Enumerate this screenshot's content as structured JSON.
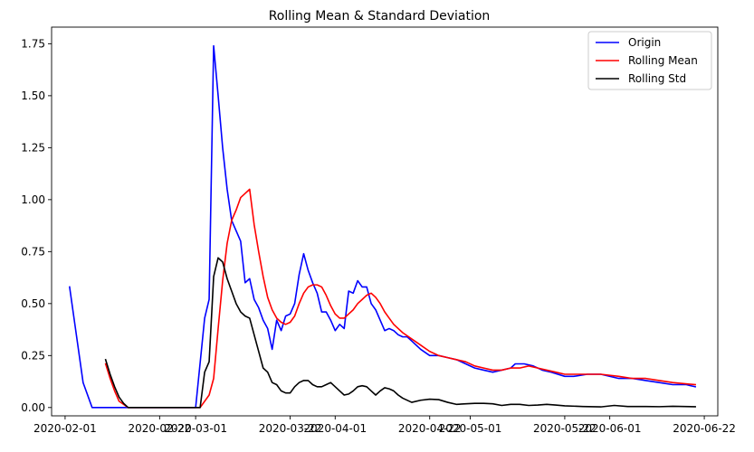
{
  "chart_data": {
    "type": "line",
    "title": "Rolling Mean & Standard Deviation",
    "xlabel": "",
    "ylabel": "",
    "x_axis": {
      "kind": "date",
      "range": [
        "2020-01-29",
        "2020-06-25"
      ],
      "ticks": [
        "2020-02-01",
        "2020-02-22",
        "2020-03-01",
        "2020-03-22",
        "2020-04-01",
        "2020-04-22",
        "2020-05-01",
        "2020-05-22",
        "2020-06-01",
        "2020-06-22"
      ]
    },
    "ylim": [
      -0.04,
      1.83
    ],
    "y_ticks": [
      "0.00",
      "0.25",
      "0.50",
      "0.75",
      "1.00",
      "1.25",
      "1.50",
      "1.75"
    ],
    "legend_position": "top-right",
    "grid": false,
    "series": [
      {
        "name": "Origin",
        "color": "#0000ff",
        "points": [
          [
            "2020-02-02",
            0.58
          ],
          [
            "2020-02-05",
            0.12
          ],
          [
            "2020-02-07",
            0.0
          ],
          [
            "2020-02-14",
            0.0
          ],
          [
            "2020-02-24",
            0.0
          ],
          [
            "2020-03-01",
            0.0
          ],
          [
            "2020-03-03",
            0.43
          ],
          [
            "2020-03-04",
            0.52
          ],
          [
            "2020-03-05",
            1.74
          ],
          [
            "2020-03-06",
            1.5
          ],
          [
            "2020-03-07",
            1.25
          ],
          [
            "2020-03-08",
            1.05
          ],
          [
            "2020-03-09",
            0.9
          ],
          [
            "2020-03-10",
            0.85
          ],
          [
            "2020-03-11",
            0.8
          ],
          [
            "2020-03-12",
            0.6
          ],
          [
            "2020-03-13",
            0.62
          ],
          [
            "2020-03-14",
            0.52
          ],
          [
            "2020-03-15",
            0.48
          ],
          [
            "2020-03-16",
            0.42
          ],
          [
            "2020-03-17",
            0.38
          ],
          [
            "2020-03-18",
            0.28
          ],
          [
            "2020-03-19",
            0.42
          ],
          [
            "2020-03-20",
            0.37
          ],
          [
            "2020-03-21",
            0.44
          ],
          [
            "2020-03-22",
            0.45
          ],
          [
            "2020-03-23",
            0.5
          ],
          [
            "2020-03-24",
            0.64
          ],
          [
            "2020-03-25",
            0.74
          ],
          [
            "2020-03-26",
            0.66
          ],
          [
            "2020-03-27",
            0.6
          ],
          [
            "2020-03-28",
            0.55
          ],
          [
            "2020-03-29",
            0.46
          ],
          [
            "2020-03-30",
            0.46
          ],
          [
            "2020-03-31",
            0.42
          ],
          [
            "2020-04-01",
            0.37
          ],
          [
            "2020-04-02",
            0.4
          ],
          [
            "2020-04-03",
            0.38
          ],
          [
            "2020-04-04",
            0.56
          ],
          [
            "2020-04-05",
            0.55
          ],
          [
            "2020-04-06",
            0.61
          ],
          [
            "2020-04-07",
            0.58
          ],
          [
            "2020-04-08",
            0.58
          ],
          [
            "2020-04-09",
            0.5
          ],
          [
            "2020-04-10",
            0.47
          ],
          [
            "2020-04-11",
            0.42
          ],
          [
            "2020-04-12",
            0.37
          ],
          [
            "2020-04-13",
            0.38
          ],
          [
            "2020-04-14",
            0.37
          ],
          [
            "2020-04-15",
            0.35
          ],
          [
            "2020-04-16",
            0.34
          ],
          [
            "2020-04-17",
            0.34
          ],
          [
            "2020-04-18",
            0.32
          ],
          [
            "2020-04-20",
            0.28
          ],
          [
            "2020-04-22",
            0.25
          ],
          [
            "2020-04-24",
            0.25
          ],
          [
            "2020-04-26",
            0.24
          ],
          [
            "2020-04-28",
            0.23
          ],
          [
            "2020-04-30",
            0.21
          ],
          [
            "2020-05-02",
            0.19
          ],
          [
            "2020-05-04",
            0.18
          ],
          [
            "2020-05-06",
            0.17
          ],
          [
            "2020-05-08",
            0.18
          ],
          [
            "2020-05-10",
            0.19
          ],
          [
            "2020-05-11",
            0.21
          ],
          [
            "2020-05-13",
            0.21
          ],
          [
            "2020-05-15",
            0.2
          ],
          [
            "2020-05-17",
            0.18
          ],
          [
            "2020-05-19",
            0.17
          ],
          [
            "2020-05-22",
            0.15
          ],
          [
            "2020-05-24",
            0.15
          ],
          [
            "2020-05-27",
            0.16
          ],
          [
            "2020-05-30",
            0.16
          ],
          [
            "2020-06-03",
            0.14
          ],
          [
            "2020-06-06",
            0.14
          ],
          [
            "2020-06-09",
            0.13
          ],
          [
            "2020-06-12",
            0.12
          ],
          [
            "2020-06-15",
            0.11
          ],
          [
            "2020-06-18",
            0.11
          ],
          [
            "2020-06-20",
            0.1
          ]
        ]
      },
      {
        "name": "Rolling Mean",
        "color": "#ff0000",
        "points": [
          [
            "2020-02-10",
            0.21
          ],
          [
            "2020-02-11",
            0.14
          ],
          [
            "2020-02-12",
            0.08
          ],
          [
            "2020-02-13",
            0.03
          ],
          [
            "2020-02-15",
            0.0
          ],
          [
            "2020-02-24",
            0.0
          ],
          [
            "2020-03-02",
            0.0
          ],
          [
            "2020-03-04",
            0.06
          ],
          [
            "2020-03-05",
            0.14
          ],
          [
            "2020-03-06",
            0.38
          ],
          [
            "2020-03-07",
            0.61
          ],
          [
            "2020-03-08",
            0.79
          ],
          [
            "2020-03-09",
            0.9
          ],
          [
            "2020-03-10",
            0.95
          ],
          [
            "2020-03-11",
            1.01
          ],
          [
            "2020-03-12",
            1.03
          ],
          [
            "2020-03-13",
            1.05
          ],
          [
            "2020-03-14",
            0.88
          ],
          [
            "2020-03-15",
            0.75
          ],
          [
            "2020-03-16",
            0.63
          ],
          [
            "2020-03-17",
            0.53
          ],
          [
            "2020-03-18",
            0.47
          ],
          [
            "2020-03-19",
            0.43
          ],
          [
            "2020-03-20",
            0.41
          ],
          [
            "2020-03-21",
            0.4
          ],
          [
            "2020-03-22",
            0.41
          ],
          [
            "2020-03-23",
            0.44
          ],
          [
            "2020-03-24",
            0.5
          ],
          [
            "2020-03-25",
            0.55
          ],
          [
            "2020-03-26",
            0.58
          ],
          [
            "2020-03-27",
            0.59
          ],
          [
            "2020-03-28",
            0.59
          ],
          [
            "2020-03-29",
            0.58
          ],
          [
            "2020-03-30",
            0.54
          ],
          [
            "2020-03-31",
            0.49
          ],
          [
            "2020-04-01",
            0.45
          ],
          [
            "2020-04-02",
            0.43
          ],
          [
            "2020-04-03",
            0.43
          ],
          [
            "2020-04-04",
            0.45
          ],
          [
            "2020-04-05",
            0.47
          ],
          [
            "2020-04-06",
            0.5
          ],
          [
            "2020-04-07",
            0.52
          ],
          [
            "2020-04-08",
            0.54
          ],
          [
            "2020-04-09",
            0.55
          ],
          [
            "2020-04-10",
            0.53
          ],
          [
            "2020-04-11",
            0.5
          ],
          [
            "2020-04-12",
            0.46
          ],
          [
            "2020-04-13",
            0.43
          ],
          [
            "2020-04-14",
            0.4
          ],
          [
            "2020-04-15",
            0.38
          ],
          [
            "2020-04-16",
            0.36
          ],
          [
            "2020-04-18",
            0.33
          ],
          [
            "2020-04-20",
            0.3
          ],
          [
            "2020-04-22",
            0.27
          ],
          [
            "2020-04-24",
            0.25
          ],
          [
            "2020-04-26",
            0.24
          ],
          [
            "2020-04-28",
            0.23
          ],
          [
            "2020-04-30",
            0.22
          ],
          [
            "2020-05-02",
            0.2
          ],
          [
            "2020-05-04",
            0.19
          ],
          [
            "2020-05-06",
            0.18
          ],
          [
            "2020-05-08",
            0.18
          ],
          [
            "2020-05-10",
            0.19
          ],
          [
            "2020-05-12",
            0.19
          ],
          [
            "2020-05-14",
            0.2
          ],
          [
            "2020-05-16",
            0.19
          ],
          [
            "2020-05-18",
            0.18
          ],
          [
            "2020-05-20",
            0.17
          ],
          [
            "2020-05-22",
            0.16
          ],
          [
            "2020-05-26",
            0.16
          ],
          [
            "2020-05-30",
            0.16
          ],
          [
            "2020-06-03",
            0.15
          ],
          [
            "2020-06-06",
            0.14
          ],
          [
            "2020-06-09",
            0.14
          ],
          [
            "2020-06-12",
            0.13
          ],
          [
            "2020-06-15",
            0.12
          ],
          [
            "2020-06-20",
            0.11
          ]
        ]
      },
      {
        "name": "Rolling Std",
        "color": "#000000",
        "points": [
          [
            "2020-02-10",
            0.23
          ],
          [
            "2020-02-11",
            0.16
          ],
          [
            "2020-02-12",
            0.1
          ],
          [
            "2020-02-13",
            0.05
          ],
          [
            "2020-02-14",
            0.02
          ],
          [
            "2020-02-15",
            0.0
          ],
          [
            "2020-02-24",
            0.0
          ],
          [
            "2020-03-02",
            0.0
          ],
          [
            "2020-03-03",
            0.17
          ],
          [
            "2020-03-04",
            0.22
          ],
          [
            "2020-03-05",
            0.63
          ],
          [
            "2020-03-06",
            0.72
          ],
          [
            "2020-03-07",
            0.7
          ],
          [
            "2020-03-08",
            0.62
          ],
          [
            "2020-03-09",
            0.56
          ],
          [
            "2020-03-10",
            0.5
          ],
          [
            "2020-03-11",
            0.46
          ],
          [
            "2020-03-12",
            0.44
          ],
          [
            "2020-03-13",
            0.43
          ],
          [
            "2020-03-14",
            0.35
          ],
          [
            "2020-03-15",
            0.27
          ],
          [
            "2020-03-16",
            0.19
          ],
          [
            "2020-03-17",
            0.17
          ],
          [
            "2020-03-18",
            0.12
          ],
          [
            "2020-03-19",
            0.11
          ],
          [
            "2020-03-20",
            0.08
          ],
          [
            "2020-03-21",
            0.07
          ],
          [
            "2020-03-22",
            0.07
          ],
          [
            "2020-03-23",
            0.1
          ],
          [
            "2020-03-24",
            0.12
          ],
          [
            "2020-03-25",
            0.13
          ],
          [
            "2020-03-26",
            0.13
          ],
          [
            "2020-03-27",
            0.11
          ],
          [
            "2020-03-28",
            0.1
          ],
          [
            "2020-03-29",
            0.1
          ],
          [
            "2020-03-30",
            0.11
          ],
          [
            "2020-03-31",
            0.12
          ],
          [
            "2020-04-01",
            0.1
          ],
          [
            "2020-04-02",
            0.08
          ],
          [
            "2020-04-03",
            0.06
          ],
          [
            "2020-04-04",
            0.065
          ],
          [
            "2020-04-05",
            0.08
          ],
          [
            "2020-04-06",
            0.1
          ],
          [
            "2020-04-07",
            0.105
          ],
          [
            "2020-04-08",
            0.1
          ],
          [
            "2020-04-09",
            0.08
          ],
          [
            "2020-04-10",
            0.06
          ],
          [
            "2020-04-11",
            0.08
          ],
          [
            "2020-04-12",
            0.095
          ],
          [
            "2020-04-13",
            0.09
          ],
          [
            "2020-04-14",
            0.08
          ],
          [
            "2020-04-15",
            0.06
          ],
          [
            "2020-04-16",
            0.045
          ],
          [
            "2020-04-18",
            0.025
          ],
          [
            "2020-04-20",
            0.035
          ],
          [
            "2020-04-22",
            0.04
          ],
          [
            "2020-04-24",
            0.038
          ],
          [
            "2020-04-26",
            0.025
          ],
          [
            "2020-04-28",
            0.015
          ],
          [
            "2020-04-30",
            0.018
          ],
          [
            "2020-05-02",
            0.02
          ],
          [
            "2020-05-04",
            0.02
          ],
          [
            "2020-05-06",
            0.018
          ],
          [
            "2020-05-08",
            0.01
          ],
          [
            "2020-05-10",
            0.015
          ],
          [
            "2020-05-12",
            0.015
          ],
          [
            "2020-05-14",
            0.01
          ],
          [
            "2020-05-16",
            0.012
          ],
          [
            "2020-05-18",
            0.015
          ],
          [
            "2020-05-20",
            0.012
          ],
          [
            "2020-05-22",
            0.008
          ],
          [
            "2020-05-26",
            0.005
          ],
          [
            "2020-05-30",
            0.003
          ],
          [
            "2020-06-02",
            0.01
          ],
          [
            "2020-06-05",
            0.005
          ],
          [
            "2020-06-09",
            0.005
          ],
          [
            "2020-06-12",
            0.004
          ],
          [
            "2020-06-15",
            0.006
          ],
          [
            "2020-06-20",
            0.004
          ]
        ]
      }
    ]
  }
}
